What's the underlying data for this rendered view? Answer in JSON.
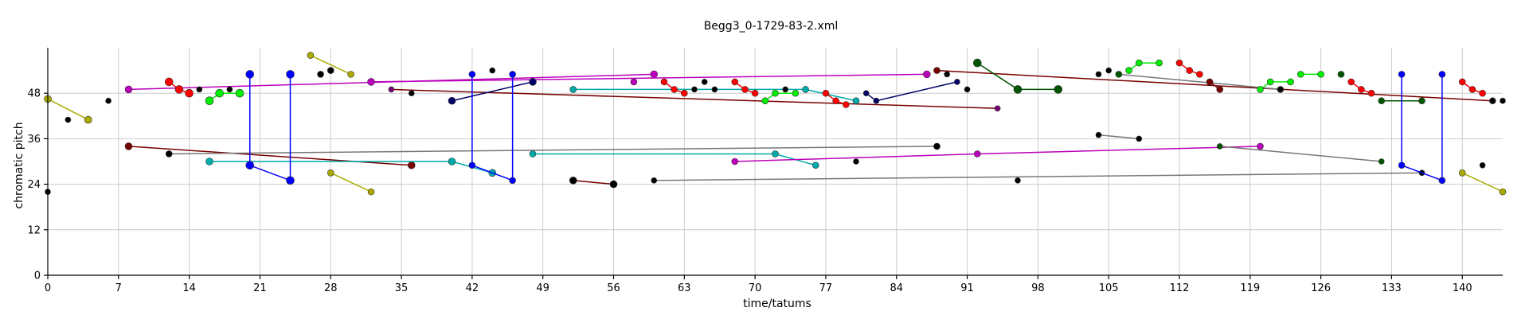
{
  "chart_data": {
    "type": "scatter",
    "title": "Begg3_0-1729-83-2.xml",
    "xlabel": "time/tatums",
    "ylabel": "chromatic pitch",
    "xlim": [
      0,
      144
    ],
    "ylim": [
      0,
      60
    ],
    "x_ticks": [
      0,
      7,
      14,
      21,
      28,
      35,
      42,
      49,
      56,
      63,
      70,
      77,
      84,
      91,
      98,
      105,
      112,
      119,
      126,
      133,
      140
    ],
    "y_ticks": [
      0,
      12,
      24,
      36,
      48
    ],
    "grid": true,
    "legend": "none",
    "colors": {
      "black": "#000000",
      "red": "#ff0000",
      "green": "#00ee00",
      "blue": "#0000ff",
      "cyan": "#00aaaa",
      "magenta": "#bb00bb",
      "olive": "#aaaa00",
      "darkred": "#770000",
      "darkgreen": "#005500",
      "navy": "#000066",
      "gray": "#777777",
      "gold": "#aaaa00"
    },
    "series": [
      {
        "color": "#aaaa00",
        "stroke": "#aaaa00",
        "size": 4.5,
        "points": [
          [
            0,
            46.5
          ],
          [
            4,
            41
          ]
        ]
      },
      {
        "color": "#000000",
        "size": 3.5,
        "points": [
          [
            0,
            22
          ]
        ]
      },
      {
        "color": "#000000",
        "size": 3.5,
        "points": [
          [
            2,
            41
          ]
        ]
      },
      {
        "color": "#000000",
        "size": 3.5,
        "points": [
          [
            6,
            46
          ]
        ]
      },
      {
        "color": "#bb00bb",
        "stroke": "#bb00bb",
        "size": 4.5,
        "points": [
          [
            8,
            49
          ],
          [
            60,
            53
          ]
        ]
      },
      {
        "color": "#770000",
        "stroke": "#770000",
        "size": 4.5,
        "points": [
          [
            8,
            34
          ],
          [
            36,
            29
          ]
        ]
      },
      {
        "color": "#ff0000",
        "stroke": "#ff0000",
        "size": 5,
        "points": [
          [
            12,
            51
          ],
          [
            13,
            49
          ],
          [
            14,
            48
          ]
        ]
      },
      {
        "color": "#000000",
        "size": 3.5,
        "points": [
          [
            15,
            49
          ]
        ]
      },
      {
        "color": "#000000",
        "stroke": "#777777",
        "size": 4,
        "points": [
          [
            12,
            32
          ],
          [
            88,
            34
          ]
        ]
      },
      {
        "color": "#00ee00",
        "stroke": "#00ee00",
        "size": 5,
        "points": [
          [
            16,
            46
          ],
          [
            17,
            48
          ],
          [
            19,
            48
          ]
        ]
      },
      {
        "color": "#000000",
        "size": 3.5,
        "points": [
          [
            18,
            49
          ]
        ]
      },
      {
        "color": "#00aaaa",
        "stroke": "#00aaaa",
        "size": 4.5,
        "points": [
          [
            16,
            30
          ],
          [
            40,
            30
          ],
          [
            44,
            27
          ]
        ]
      },
      {
        "color": "#0000ff",
        "stroke": "#0000ff",
        "size": 5,
        "points": [
          [
            20,
            53
          ],
          [
            20,
            29
          ],
          [
            24,
            25
          ],
          [
            24,
            53
          ]
        ]
      },
      {
        "color": "#aaaa00",
        "stroke": "#aaaa00",
        "size": 4,
        "points": [
          [
            26,
            58
          ],
          [
            30,
            53
          ]
        ]
      },
      {
        "color": "#000000",
        "size": 4,
        "points": [
          [
            27,
            53
          ],
          [
            28,
            54
          ]
        ]
      },
      {
        "color": "#aaaa00",
        "stroke": "#aaaa00",
        "size": 4,
        "points": [
          [
            28,
            27
          ],
          [
            32,
            22
          ]
        ]
      },
      {
        "color": "#bb00bb",
        "stroke": "#bb00bb",
        "size": 4.5,
        "points": [
          [
            32,
            51
          ],
          [
            87,
            53
          ]
        ]
      },
      {
        "color": "#770077",
        "stroke": "#770000",
        "size": 3.5,
        "points": [
          [
            34,
            49
          ],
          [
            94,
            44
          ]
        ]
      },
      {
        "color": "#000000",
        "size": 3.5,
        "points": [
          [
            36,
            48
          ]
        ]
      },
      {
        "color": "#000066",
        "stroke": "#000066",
        "size": 4.5,
        "points": [
          [
            40,
            46
          ],
          [
            48,
            51
          ]
        ]
      },
      {
        "color": "#0000ff",
        "stroke": "#0000ff",
        "size": 4,
        "points": [
          [
            42,
            53
          ],
          [
            42,
            29
          ],
          [
            46,
            25
          ],
          [
            46,
            53
          ]
        ]
      },
      {
        "color": "#000000",
        "size": 3.5,
        "points": [
          [
            44,
            54
          ]
        ]
      },
      {
        "color": "#00aaaa",
        "stroke": "#00aaaa",
        "size": 4,
        "points": [
          [
            48,
            32
          ],
          [
            72,
            32
          ],
          [
            76,
            29
          ]
        ]
      },
      {
        "color": "#000000",
        "stroke": "#770000",
        "size": 4.5,
        "points": [
          [
            52,
            25
          ],
          [
            56,
            24
          ]
        ]
      },
      {
        "color": "#00aaaa",
        "stroke": "#00aaaa",
        "size": 4,
        "points": [
          [
            52,
            49
          ],
          [
            75,
            49
          ],
          [
            80,
            46
          ]
        ]
      },
      {
        "color": "#bb00bb",
        "size": 4,
        "points": [
          [
            58,
            51
          ]
        ]
      },
      {
        "color": "#ff0000",
        "stroke": "#ff0000",
        "size": 4,
        "points": [
          [
            61,
            51
          ],
          [
            62,
            49
          ],
          [
            63,
            48
          ]
        ]
      },
      {
        "color": "#000000",
        "size": 3.5,
        "points": [
          [
            64,
            49
          ],
          [
            65,
            51
          ],
          [
            66,
            49
          ]
        ]
      },
      {
        "color": "#000000",
        "stroke": "#777777",
        "size": 3.5,
        "points": [
          [
            60,
            25
          ],
          [
            136,
            27
          ]
        ]
      },
      {
        "color": "#ff0000",
        "stroke": "#ff0000",
        "size": 4,
        "points": [
          [
            68,
            51
          ],
          [
            69,
            49
          ],
          [
            70,
            48
          ]
        ]
      },
      {
        "color": "#00ee00",
        "stroke": "#00ee00",
        "size": 4,
        "points": [
          [
            71,
            46
          ],
          [
            72,
            48
          ],
          [
            74,
            48
          ]
        ]
      },
      {
        "color": "#000000",
        "size": 3.5,
        "points": [
          [
            73,
            49
          ]
        ]
      },
      {
        "color": "#bb00bb",
        "stroke": "#bb00bb",
        "size": 4,
        "points": [
          [
            68,
            30
          ],
          [
            92,
            32
          ],
          [
            120,
            34
          ]
        ]
      },
      {
        "color": "#ff0000",
        "stroke": "#ff0000",
        "size": 4,
        "points": [
          [
            77,
            48
          ],
          [
            78,
            46
          ],
          [
            79,
            45
          ]
        ]
      },
      {
        "color": "#000000",
        "size": 3.5,
        "points": [
          [
            80,
            30
          ]
        ]
      },
      {
        "color": "#000066",
        "stroke": "#000066",
        "size": 3.5,
        "points": [
          [
            81,
            48
          ],
          [
            82,
            46
          ],
          [
            90,
            51
          ]
        ]
      },
      {
        "color": "#000000",
        "size": 3.5,
        "points": [
          [
            89,
            53
          ]
        ]
      },
      {
        "color": "#770000",
        "stroke": "#770000",
        "size": 4,
        "points": [
          [
            88,
            54
          ],
          [
            143,
            46
          ]
        ]
      },
      {
        "color": "#000000",
        "size": 3.5,
        "points": [
          [
            91,
            49
          ]
        ]
      },
      {
        "color": "#005500",
        "stroke": "#005500",
        "size": 5,
        "points": [
          [
            92,
            56
          ],
          [
            96,
            49
          ],
          [
            100,
            49
          ]
        ]
      },
      {
        "color": "#000000",
        "size": 3.5,
        "points": [
          [
            96,
            25
          ]
        ]
      },
      {
        "color": "#000000",
        "stroke": "#777777",
        "size": 3.5,
        "points": [
          [
            104,
            37
          ],
          [
            108,
            36
          ]
        ]
      },
      {
        "color": "#000000",
        "size": 3.5,
        "points": [
          [
            104,
            53
          ],
          [
            105,
            54
          ],
          [
            106,
            53
          ]
        ]
      },
      {
        "color": "#00ee00",
        "stroke": "#00ee00",
        "size": 4,
        "points": [
          [
            107,
            54
          ],
          [
            108,
            56
          ],
          [
            110,
            56
          ]
        ]
      },
      {
        "color": "#005500",
        "stroke": "#777777",
        "size": 4,
        "points": [
          [
            106,
            53
          ],
          [
            122,
            49
          ]
        ]
      },
      {
        "color": "#ff0000",
        "stroke": "#ff0000",
        "size": 4,
        "points": [
          [
            112,
            56
          ],
          [
            113,
            54
          ],
          [
            114,
            53
          ]
        ]
      },
      {
        "color": "#770000",
        "stroke": "#770000",
        "size": 4,
        "points": [
          [
            115,
            51
          ],
          [
            116,
            49
          ]
        ]
      },
      {
        "color": "#005500",
        "stroke": "#777777",
        "size": 3.5,
        "points": [
          [
            116,
            34
          ],
          [
            132,
            30
          ]
        ]
      },
      {
        "color": "#00ee00",
        "stroke": "#00ee00",
        "size": 4,
        "points": [
          [
            120,
            49
          ],
          [
            121,
            51
          ],
          [
            123,
            51
          ]
        ]
      },
      {
        "color": "#000000",
        "size": 3.5,
        "points": [
          [
            122,
            49
          ]
        ]
      },
      {
        "color": "#00ee00",
        "stroke": "#00ee00",
        "size": 4,
        "points": [
          [
            124,
            53
          ],
          [
            126,
            53
          ]
        ]
      },
      {
        "color": "#005500",
        "size": 4,
        "points": [
          [
            128,
            53
          ]
        ]
      },
      {
        "color": "#ff0000",
        "stroke": "#ff0000",
        "size": 4,
        "points": [
          [
            129,
            51
          ],
          [
            130,
            49
          ],
          [
            131,
            48
          ]
        ]
      },
      {
        "color": "#005500",
        "stroke": "#005500",
        "size": 4,
        "points": [
          [
            132,
            46
          ],
          [
            136,
            46
          ]
        ]
      },
      {
        "color": "#0000ff",
        "stroke": "#0000ff",
        "size": 4,
        "points": [
          [
            134,
            53
          ],
          [
            134,
            29
          ],
          [
            138,
            25
          ],
          [
            138,
            53
          ]
        ]
      },
      {
        "color": "#aaaa00",
        "stroke": "#aaaa00",
        "size": 4,
        "points": [
          [
            140,
            27
          ],
          [
            144,
            22
          ]
        ]
      },
      {
        "color": "#000000",
        "size": 3.5,
        "points": [
          [
            142,
            29
          ]
        ]
      },
      {
        "color": "#ff0000",
        "stroke": "#ff0000",
        "size": 4,
        "points": [
          [
            140,
            51
          ],
          [
            141,
            49
          ],
          [
            142,
            48
          ]
        ]
      },
      {
        "color": "#000000",
        "size": 3.5,
        "points": [
          [
            143,
            46
          ],
          [
            144,
            46
          ]
        ]
      }
    ]
  }
}
